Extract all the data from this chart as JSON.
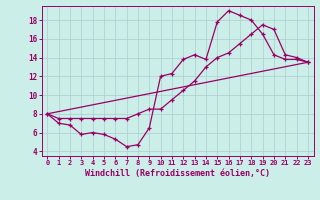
{
  "xlabel": "Windchill (Refroidissement éolien,°C)",
  "background_color": "#cceee8",
  "grid_color": "#aacccc",
  "line_color": "#990066",
  "xlim": [
    -0.5,
    23.5
  ],
  "ylim": [
    3.5,
    19.5
  ],
  "yticks": [
    4,
    6,
    8,
    10,
    12,
    14,
    16,
    18
  ],
  "xticks": [
    0,
    1,
    2,
    3,
    4,
    5,
    6,
    7,
    8,
    9,
    10,
    11,
    12,
    13,
    14,
    15,
    16,
    17,
    18,
    19,
    20,
    21,
    22,
    23
  ],
  "line1_x": [
    0,
    1,
    2,
    3,
    4,
    5,
    6,
    7,
    8,
    9,
    10,
    11,
    12,
    13,
    14,
    15,
    16,
    17,
    18,
    19,
    20,
    21,
    22,
    23
  ],
  "line1_y": [
    8.0,
    7.0,
    6.8,
    5.8,
    6.0,
    5.8,
    5.3,
    4.5,
    4.7,
    6.5,
    12.0,
    12.3,
    13.8,
    14.3,
    13.8,
    17.8,
    19.0,
    18.5,
    18.0,
    16.5,
    14.3,
    13.8,
    13.8,
    13.5
  ],
  "line2_x": [
    0,
    1,
    2,
    3,
    4,
    5,
    6,
    7,
    8,
    9,
    10,
    11,
    12,
    13,
    14,
    15,
    16,
    17,
    18,
    19,
    20,
    21,
    22,
    23
  ],
  "line2_y": [
    8.0,
    7.5,
    7.5,
    7.5,
    7.5,
    7.5,
    7.5,
    7.5,
    8.0,
    8.5,
    8.5,
    9.5,
    10.5,
    11.5,
    13.0,
    14.0,
    14.5,
    15.5,
    16.5,
    17.5,
    17.0,
    14.3,
    14.0,
    13.5
  ],
  "line3_x": [
    0,
    23
  ],
  "line3_y": [
    8.0,
    13.5
  ],
  "marker_x1": [
    0,
    1,
    2,
    3,
    4,
    5,
    6,
    7,
    8,
    9,
    10,
    11,
    12,
    13,
    14,
    15,
    16,
    17,
    18,
    19,
    20,
    21,
    22,
    23
  ],
  "marker_x2": [
    0,
    1,
    2,
    3,
    4,
    5,
    6,
    7,
    8,
    9,
    10,
    11,
    12,
    13,
    14,
    15,
    16,
    17,
    18,
    19,
    20,
    21,
    22,
    23
  ]
}
